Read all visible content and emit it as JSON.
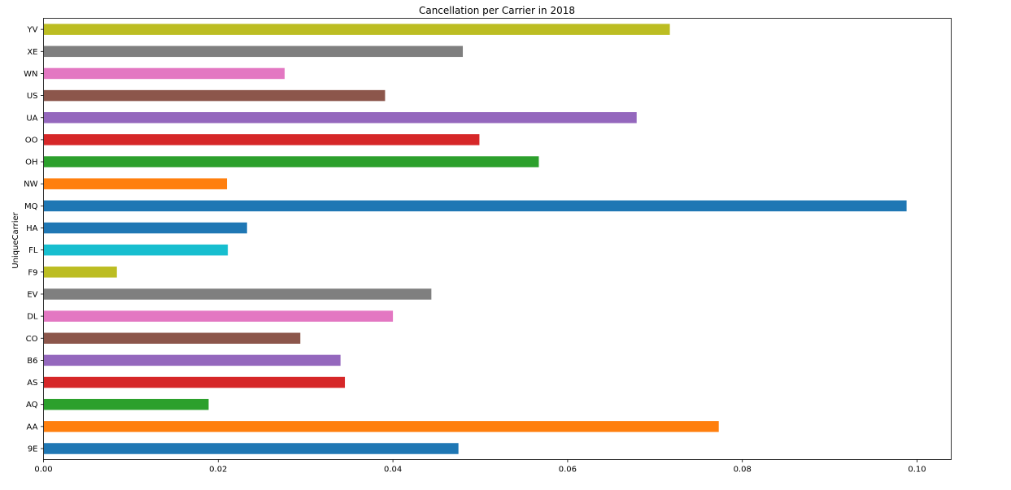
{
  "chart_data": {
    "type": "bar",
    "orientation": "horizontal",
    "title": "Cancellation per Carrier in 2018",
    "xlabel": "",
    "ylabel": "UniqueCarrier",
    "xlim": [
      0,
      0.104
    ],
    "xticks": [
      "0.00",
      "0.02",
      "0.04",
      "0.06",
      "0.08",
      "0.10"
    ],
    "grid": false,
    "categories": [
      "9E",
      "AA",
      "AQ",
      "AS",
      "B6",
      "CO",
      "DL",
      "EV",
      "F9",
      "FL",
      "HA",
      "MQ",
      "NW",
      "OH",
      "OO",
      "UA",
      "US",
      "WN",
      "XE",
      "YV"
    ],
    "values": [
      0.0475,
      0.0773,
      0.0189,
      0.0345,
      0.034,
      0.0294,
      0.04,
      0.0444,
      0.0084,
      0.0211,
      0.0233,
      0.0988,
      0.021,
      0.0567,
      0.0499,
      0.0679,
      0.0391,
      0.0276,
      0.048,
      0.0717
    ],
    "colors": [
      "#1f77b4",
      "#ff7f0e",
      "#2ca02c",
      "#d62728",
      "#9467bd",
      "#8c564b",
      "#e377c2",
      "#7f7f7f",
      "#bcbd22",
      "#17becf",
      "#1f77b4",
      "#1f77b4",
      "#ff7f0e",
      "#2ca02c",
      "#d62728",
      "#9467bd",
      "#8c564b",
      "#e377c2",
      "#7f7f7f",
      "#bcbd22"
    ]
  }
}
